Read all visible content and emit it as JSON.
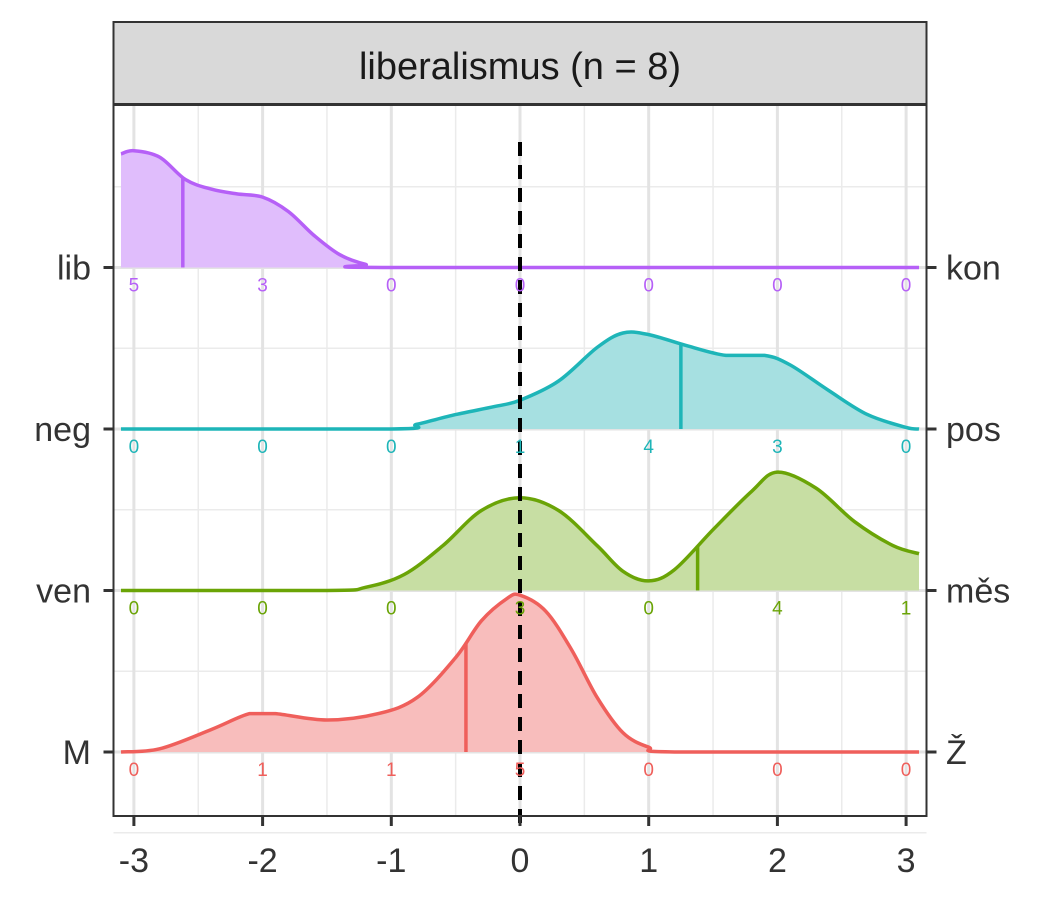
{
  "chart_data": {
    "type": "ridgeline",
    "title": "liberalismus (n = 8)",
    "x_ticks": [
      "-3",
      "-2",
      "-1",
      "0",
      "1",
      "2",
      "3"
    ],
    "xlim": [
      -3.1,
      3.1
    ],
    "reference_line_x": 0,
    "grid": true,
    "rows": [
      {
        "left_label": "lib",
        "right_label": "kon",
        "color": "#b660f7",
        "fill": "#e0bdfc",
        "counts": [
          "5",
          "3",
          "0",
          "0",
          "0",
          "0",
          "0"
        ],
        "mean": -2.62,
        "density": [
          [
            -3.1,
            0.71
          ],
          [
            -3.0,
            0.73
          ],
          [
            -2.8,
            0.69
          ],
          [
            -2.6,
            0.55
          ],
          [
            -2.4,
            0.49
          ],
          [
            -2.2,
            0.46
          ],
          [
            -2.0,
            0.44
          ],
          [
            -1.8,
            0.35
          ],
          [
            -1.6,
            0.2
          ],
          [
            -1.4,
            0.08
          ],
          [
            -1.2,
            0.02
          ],
          [
            -1.0,
            0.0
          ],
          [
            3.1,
            0.0
          ]
        ]
      },
      {
        "left_label": "neg",
        "right_label": "pos",
        "color": "#1eb5b8",
        "fill": "#a6e0e1",
        "counts": [
          "0",
          "0",
          "0",
          "1",
          "4",
          "3",
          "0"
        ],
        "mean": 1.25,
        "density": [
          [
            -3.1,
            0.0
          ],
          [
            -1.0,
            0.0
          ],
          [
            -0.8,
            0.03
          ],
          [
            -0.5,
            0.09
          ],
          [
            -0.2,
            0.14
          ],
          [
            0.0,
            0.18
          ],
          [
            0.3,
            0.3
          ],
          [
            0.6,
            0.51
          ],
          [
            0.8,
            0.6
          ],
          [
            1.0,
            0.59
          ],
          [
            1.3,
            0.52
          ],
          [
            1.6,
            0.46
          ],
          [
            1.9,
            0.46
          ],
          [
            2.1,
            0.4
          ],
          [
            2.4,
            0.24
          ],
          [
            2.7,
            0.09
          ],
          [
            3.0,
            0.01
          ],
          [
            3.1,
            0.0
          ]
        ]
      },
      {
        "left_label": "ven",
        "right_label": "měs",
        "color": "#6aa406",
        "fill": "#c7dea3",
        "counts": [
          "0",
          "0",
          "0",
          "3",
          "0",
          "4",
          "1"
        ],
        "mean": 1.38,
        "density": [
          [
            -3.1,
            0.0
          ],
          [
            -1.5,
            0.0
          ],
          [
            -1.2,
            0.02
          ],
          [
            -0.9,
            0.1
          ],
          [
            -0.6,
            0.28
          ],
          [
            -0.3,
            0.5
          ],
          [
            0.0,
            0.58
          ],
          [
            0.3,
            0.5
          ],
          [
            0.6,
            0.28
          ],
          [
            0.8,
            0.12
          ],
          [
            1.0,
            0.06
          ],
          [
            1.2,
            0.13
          ],
          [
            1.5,
            0.38
          ],
          [
            1.8,
            0.62
          ],
          [
            2.0,
            0.74
          ],
          [
            2.3,
            0.64
          ],
          [
            2.6,
            0.43
          ],
          [
            2.9,
            0.28
          ],
          [
            3.1,
            0.23
          ]
        ]
      },
      {
        "left_label": "M",
        "right_label": "Ž",
        "color": "#ef5f5b",
        "fill": "#f8bdbc",
        "counts": [
          "0",
          "1",
          "1",
          "5",
          "0",
          "0",
          "0"
        ],
        "mean": -0.42,
        "density": [
          [
            -3.1,
            0.0
          ],
          [
            -2.8,
            0.02
          ],
          [
            -2.4,
            0.14
          ],
          [
            -2.1,
            0.24
          ],
          [
            -1.9,
            0.24
          ],
          [
            -1.5,
            0.2
          ],
          [
            -1.1,
            0.24
          ],
          [
            -0.8,
            0.34
          ],
          [
            -0.5,
            0.59
          ],
          [
            -0.3,
            0.82
          ],
          [
            -0.1,
            0.96
          ],
          [
            0.0,
            0.98
          ],
          [
            0.2,
            0.88
          ],
          [
            0.4,
            0.64
          ],
          [
            0.6,
            0.34
          ],
          [
            0.8,
            0.12
          ],
          [
            1.0,
            0.03
          ],
          [
            1.2,
            0.0
          ],
          [
            3.1,
            0.0
          ]
        ]
      }
    ]
  }
}
